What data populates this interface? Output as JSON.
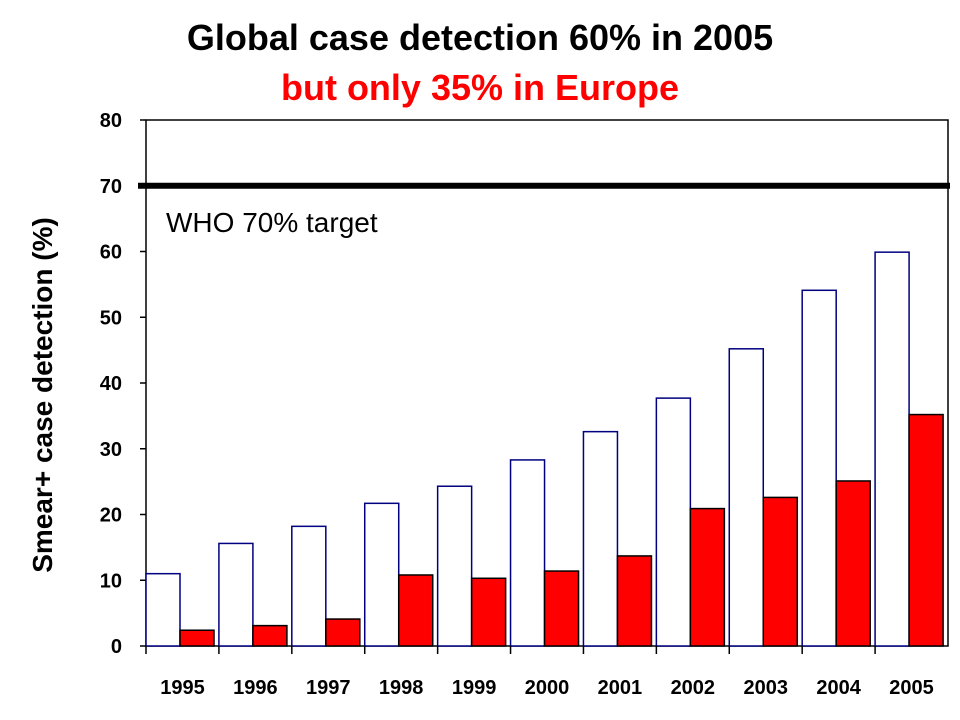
{
  "title": "Global case detection 60% in 2005",
  "subtitle": "but only 35% in Europe",
  "chart_data": {
    "type": "bar",
    "title": "Global case detection 60% in 2005",
    "subtitle": "but only 35% in Europe",
    "xlabel": "",
    "ylabel": "Smear+ case detection (%)",
    "ylim": [
      0,
      80
    ],
    "yticks": [
      0,
      10,
      20,
      30,
      40,
      50,
      60,
      70,
      80
    ],
    "categories": [
      "1995",
      "1996",
      "1997",
      "1998",
      "1999",
      "2000",
      "2001",
      "2002",
      "2003",
      "2004",
      "2005"
    ],
    "series": [
      {
        "values": [
          11,
          15.6,
          18.2,
          21.7,
          24.3,
          28.3,
          32.6,
          37.7,
          45.2,
          54.1,
          59.9
        ],
        "color": "#ffffff",
        "stroke": "#000080"
      },
      {
        "values": [
          2.4,
          3.1,
          4.1,
          10.8,
          10.3,
          11.4,
          13.7,
          20.9,
          22.6,
          25.1,
          35.2
        ],
        "color": "#ff0000",
        "stroke": "#000000"
      }
    ],
    "reference_line": {
      "value": 70,
      "label": "WHO 70% target",
      "color": "#000000"
    },
    "grid": false,
    "legend": "none"
  }
}
